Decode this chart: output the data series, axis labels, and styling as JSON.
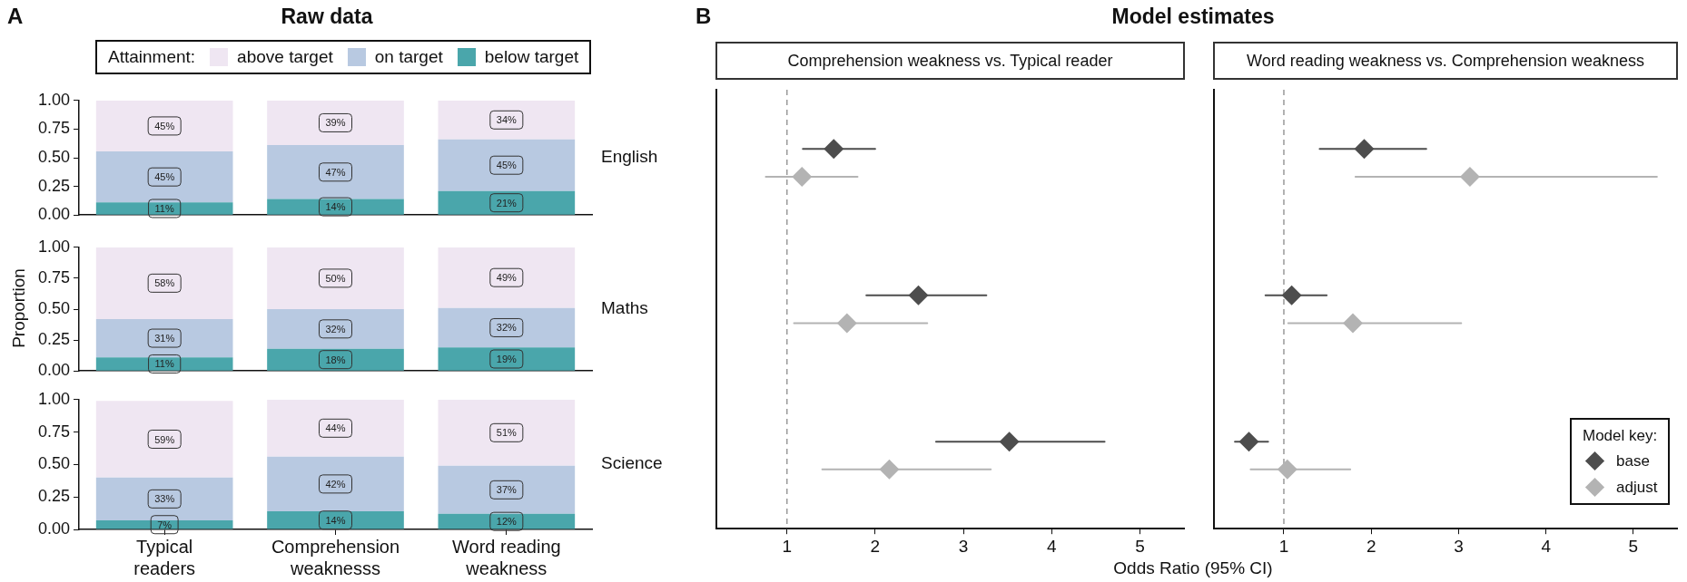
{
  "chart_data": [
    {
      "type": "bar",
      "title": "Raw data",
      "subtitle": "English",
      "annotations": [
        "A"
      ],
      "categories": [
        null,
        null,
        null
      ],
      "stacked": true,
      "legend": "top",
      "legend_title": "Attainment:",
      "tick_labels": "y",
      "ylim": [
        0,
        1
      ],
      "yticks": [
        {
          "value": 0,
          "label": "0.00"
        },
        {
          "value": 0.25,
          "label": "0.25"
        },
        {
          "value": 0.5,
          "label": "0.50"
        },
        {
          "value": 0.75,
          "label": "0.75"
        },
        {
          "value": 1,
          "label": "1.00"
        }
      ],
      "series": [
        {
          "name": "below target",
          "color": "#4aa6ab",
          "values": [
            0.11,
            0.14,
            0.21
          ],
          "value_labels": [
            "11%",
            "14%",
            "21%"
          ]
        },
        {
          "name": "on target",
          "color": "#b8c9e1",
          "values": [
            0.445,
            0.47,
            0.45
          ],
          "value_labels": [
            "45%",
            "47%",
            "45%"
          ]
        },
        {
          "name": "above target",
          "color": "#efe6f2",
          "values": [
            0.445,
            0.39,
            0.34
          ],
          "value_labels": [
            "45%",
            "39%",
            "34%"
          ]
        }
      ]
    },
    {
      "type": "bar",
      "subtitle": "Maths",
      "ylabel": "Proportion",
      "categories": [
        null,
        null,
        null
      ],
      "stacked": true,
      "tick_labels": "y",
      "ylim": [
        0,
        1
      ],
      "yticks": [
        {
          "value": 0,
          "label": "0.00"
        },
        {
          "value": 0.25,
          "label": "0.25"
        },
        {
          "value": 0.5,
          "label": "0.50"
        },
        {
          "value": 0.75,
          "label": "0.75"
        },
        {
          "value": 1,
          "label": "1.00"
        }
      ],
      "series": [
        {
          "color": "#4aa6ab",
          "values": [
            0.11,
            0.18,
            0.19
          ],
          "value_labels": [
            "11%",
            "18%",
            "19%"
          ]
        },
        {
          "color": "#b8c9e1",
          "values": [
            0.31,
            0.32,
            0.32
          ],
          "value_labels": [
            "31%",
            "32%",
            "32%"
          ]
        },
        {
          "color": "#efe6f2",
          "values": [
            0.58,
            0.5,
            0.49
          ],
          "value_labels": [
            "58%",
            "50%",
            "49%"
          ]
        }
      ]
    },
    {
      "type": "bar",
      "subtitle": "Science",
      "categories": [
        "Typical readers",
        "Comprehension weaknesss",
        "Word reading weakness"
      ],
      "stacked": true,
      "ylim": [
        0,
        1
      ],
      "yticks": [
        {
          "value": 0,
          "label": "0.00"
        },
        {
          "value": 0.25,
          "label": "0.25"
        },
        {
          "value": 0.5,
          "label": "0.50"
        },
        {
          "value": 0.75,
          "label": "0.75"
        },
        {
          "value": 1,
          "label": "1.00"
        }
      ],
      "series": [
        {
          "color": "#4aa6ab",
          "values": [
            0.07,
            0.14,
            0.12
          ],
          "value_labels": [
            "7%",
            "14%",
            "12%"
          ]
        },
        {
          "color": "#b8c9e1",
          "values": [
            0.33,
            0.42,
            0.37
          ],
          "value_labels": [
            "33%",
            "42%",
            "37%"
          ]
        },
        {
          "color": "#efe6f2",
          "values": [
            0.59,
            0.44,
            0.51
          ],
          "value_labels": [
            "59%",
            "44%",
            "51%"
          ]
        }
      ]
    },
    {
      "type": "scatter",
      "title": "Model estimates",
      "subtitle": "Comprehension weakness vs. Typical reader",
      "xlabel": "Odds Ratio (95% CI)",
      "annotations": [
        "B"
      ],
      "orientation": "horizontal",
      "categories": [
        null,
        null,
        null
      ],
      "tick_labels": "x",
      "marker": "diamond",
      "xlim": [
        0.2,
        5.5
      ],
      "xticks": [
        1,
        2,
        3,
        4,
        5
      ],
      "ref_lines": [
        {
          "axis": "x",
          "value": 1,
          "color": "#999999",
          "line_style": "dashed"
        }
      ],
      "series": [
        {
          "color": "#4d4d4d",
          "values": [
            1.53,
            2.49,
            3.52
          ],
          "errors": [
            [
              1.18,
              2.0
            ],
            [
              1.9,
              3.26
            ],
            [
              2.69,
              4.6
            ]
          ]
        },
        {
          "color": "#b3b3b3",
          "values": [
            1.17,
            1.68,
            2.16
          ],
          "errors": [
            [
              0.76,
              1.8
            ],
            [
              1.08,
              2.59
            ],
            [
              1.4,
              3.31
            ]
          ]
        }
      ]
    },
    {
      "type": "scatter",
      "subtitle": "Word reading weakness vs. Comprehension weakness",
      "orientation": "horizontal",
      "categories": [
        null,
        null,
        null
      ],
      "tick_labels": "x",
      "marker": "diamond",
      "legend": "bottom right",
      "legend_title": "Model key:",
      "xlim": [
        0.2,
        5.5
      ],
      "xticks": [
        1,
        2,
        3,
        4,
        5
      ],
      "ref_lines": [
        {
          "axis": "x",
          "value": 1,
          "color": "#999999",
          "line_style": "dashed"
        }
      ],
      "series": [
        {
          "name": "base",
          "color": "#4d4d4d",
          "values": [
            1.92,
            1.09,
            0.6
          ],
          "errors": [
            [
              1.41,
              2.63
            ],
            [
              0.79,
              1.49
            ],
            [
              0.44,
              0.82
            ]
          ]
        },
        {
          "name": "adjust",
          "color": "#b3b3b3",
          "values": [
            3.13,
            1.79,
            1.04
          ],
          "errors": [
            [
              1.82,
              5.27
            ],
            [
              1.05,
              3.03
            ],
            [
              0.62,
              1.76
            ]
          ]
        }
      ]
    }
  ]
}
